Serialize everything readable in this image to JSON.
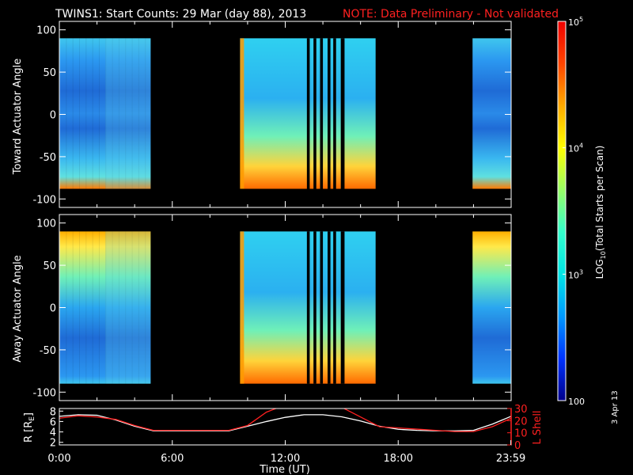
{
  "header": {
    "title": "TWINS1: Start Counts: 29 Mar (day  88), 2013",
    "note": "NOTE: Data Preliminary - Not validated",
    "note_color": "#ff2020"
  },
  "side_date": "3 Apr 13",
  "chart_data": [
    {
      "type": "heatmap",
      "name": "toward-panel",
      "ylabel": "Toward Actuator Angle",
      "ylim": [
        -110,
        110
      ],
      "yticks": [
        -100,
        -50,
        0,
        50,
        100
      ],
      "xlim": [
        0,
        24
      ],
      "data_x_range": [
        [
          0,
          4.85
        ],
        [
          9.6,
          16.8
        ],
        [
          21.95,
          24
        ]
      ],
      "data_y_range": [
        -88,
        90
      ],
      "gaps_hours": [
        [
          13.15,
          13.3
        ],
        [
          13.5,
          13.65
        ],
        [
          13.85,
          14.0
        ],
        [
          14.25,
          14.4
        ],
        [
          14.55,
          14.7
        ],
        [
          14.95,
          15.15
        ]
      ]
    },
    {
      "type": "heatmap",
      "name": "away-panel",
      "ylabel": "Away Actuator Angle",
      "ylim": [
        -110,
        110
      ],
      "yticks": [
        -100,
        -50,
        0,
        50,
        100
      ],
      "xlim": [
        0,
        24
      ],
      "data_x_range": [
        [
          0,
          4.85
        ],
        [
          9.6,
          16.8
        ],
        [
          21.95,
          24
        ]
      ],
      "data_y_range": [
        -90,
        90
      ],
      "gaps_hours": [
        [
          13.15,
          13.3
        ],
        [
          13.5,
          13.65
        ],
        [
          13.85,
          14.0
        ],
        [
          14.25,
          14.4
        ],
        [
          14.55,
          14.7
        ],
        [
          14.95,
          15.15
        ]
      ]
    },
    {
      "type": "line",
      "name": "orbit-panel",
      "xlabel": "Time (UT)",
      "xticks": [
        "0:00",
        "6:00",
        "12:00",
        "18:00",
        "23:59"
      ],
      "xtick_hours": [
        0,
        6,
        12,
        18,
        23.983
      ],
      "left_axis": {
        "label": "R [R",
        "label_sub": "E",
        "label_end": "]",
        "range": [
          1.5,
          8.5
        ],
        "ticks": [
          2,
          4,
          6,
          8
        ],
        "color": "#ffffff"
      },
      "right_axis": {
        "label": "L Shell",
        "range": [
          0,
          30
        ],
        "ticks": [
          0,
          10,
          20,
          30
        ],
        "color": "#ff2020"
      },
      "series": [
        {
          "axis": "left",
          "color": "#ffffff",
          "x": [
            0,
            1,
            2,
            3,
            4,
            5,
            6,
            7,
            8,
            9,
            10,
            11,
            12,
            13,
            14,
            15,
            16,
            17,
            18,
            19,
            20,
            21,
            22,
            23,
            24
          ],
          "y": [
            7.0,
            7.3,
            7.2,
            6.3,
            5.1,
            4.2,
            4.2,
            4.2,
            4.2,
            4.2,
            5.1,
            6.0,
            6.8,
            7.3,
            7.3,
            6.9,
            6.1,
            5.1,
            4.5,
            4.3,
            4.2,
            4.2,
            4.3,
            5.5,
            7.0
          ]
        },
        {
          "axis": "right",
          "color": "#ff2020",
          "x": [
            0,
            1,
            2,
            3,
            4,
            5,
            6,
            7,
            8,
            9,
            10,
            11,
            12,
            13,
            14,
            15,
            16,
            17,
            18,
            19,
            20,
            21,
            22,
            23,
            24
          ],
          "y": [
            22,
            24,
            23,
            21,
            16,
            12,
            12,
            12,
            12,
            12,
            16,
            27,
            33,
            33,
            33,
            31,
            23,
            15,
            14,
            13,
            12,
            11,
            11,
            15,
            22
          ]
        }
      ]
    }
  ],
  "colorbar": {
    "label_prefix": "LOG",
    "label_sub": "10",
    "label_suffix": "(Total Starts per Scan)",
    "range_log": [
      2,
      5
    ],
    "ticks": [
      {
        "base": "10",
        "exp": "5",
        "value_log": 5
      },
      {
        "base": "10",
        "exp": "4",
        "value_log": 4
      },
      {
        "base": "10",
        "exp": "3",
        "value_log": 3
      },
      {
        "base": "100",
        "exp": "",
        "value_log": 2
      }
    ],
    "gradient_colors": [
      "#00008b",
      "#0033ff",
      "#0099ff",
      "#00e5e5",
      "#33ffcc",
      "#99ff66",
      "#ffff00",
      "#ffaa00",
      "#ff4400",
      "#ee0000"
    ]
  }
}
